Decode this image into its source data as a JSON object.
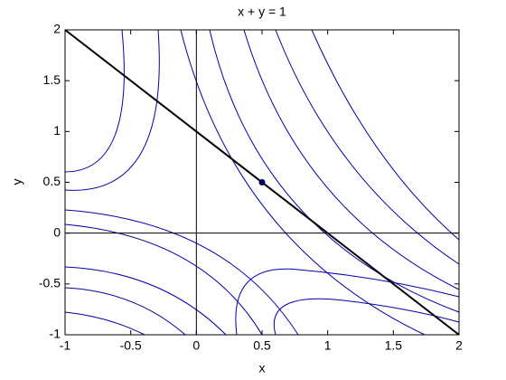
{
  "chart_data": {
    "type": "line",
    "title": "x + y = 1",
    "x_label": "x",
    "y_label": "y",
    "series": [
      {
        "color": "#000000",
        "x": [
          -1,
          2
        ],
        "values": [
          2,
          -1
        ]
      }
    ],
    "point": {
      "x": 0.5,
      "y": 0.5,
      "color": "#000066"
    },
    "xlim": [
      -1,
      2
    ],
    "ylim": [
      -1,
      2
    ],
    "xticks": [
      -1,
      -0.5,
      0,
      0.5,
      1,
      1.5,
      2
    ],
    "yticks": [
      -1,
      -0.5,
      0,
      0.5,
      1,
      1.5,
      2
    ]
  }
}
